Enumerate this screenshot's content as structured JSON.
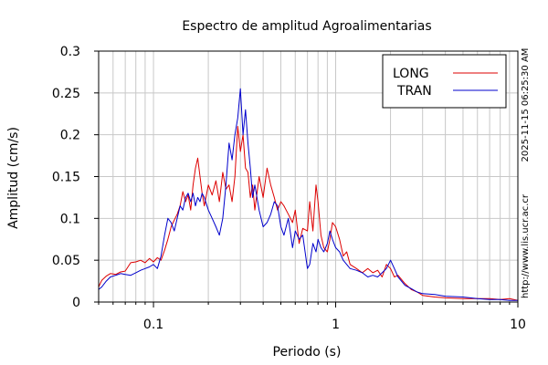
{
  "chart_data": {
    "type": "line",
    "title": "Espectro de amplitud Agroalimentarias",
    "xlabel": "Periodo (s)",
    "ylabel": "Amplitud (cm/s)",
    "x_scale": "log",
    "xlim": [
      0.05,
      10
    ],
    "ylim": [
      0,
      0.3
    ],
    "x_ticks": [
      {
        "value": 0.1,
        "label": "0.1"
      },
      {
        "value": 1,
        "label": "1"
      },
      {
        "value": 10,
        "label": "10"
      }
    ],
    "y_ticks": [
      {
        "value": 0,
        "label": "0"
      },
      {
        "value": 0.05,
        "label": "0.05"
      },
      {
        "value": 0.1,
        "label": "0.1"
      },
      {
        "value": 0.15,
        "label": "0.15"
      },
      {
        "value": 0.2,
        "label": "0.2"
      },
      {
        "value": 0.25,
        "label": "0.25"
      },
      {
        "value": 0.3,
        "label": "0.3"
      }
    ],
    "grid": true,
    "legend_position": "top-right",
    "side_texts": [
      "2025-11-15 06:25:30 AM",
      "http://www.lis.ucr.ac.cr"
    ],
    "series": [
      {
        "name": "LONG",
        "color": "#dd0000",
        "points": [
          [
            0.05,
            0.018
          ],
          [
            0.052,
            0.026
          ],
          [
            0.055,
            0.031
          ],
          [
            0.058,
            0.034
          ],
          [
            0.062,
            0.033
          ],
          [
            0.066,
            0.036
          ],
          [
            0.07,
            0.037
          ],
          [
            0.075,
            0.047
          ],
          [
            0.08,
            0.048
          ],
          [
            0.085,
            0.05
          ],
          [
            0.09,
            0.047
          ],
          [
            0.095,
            0.052
          ],
          [
            0.1,
            0.048
          ],
          [
            0.105,
            0.053
          ],
          [
            0.11,
            0.05
          ],
          [
            0.115,
            0.062
          ],
          [
            0.12,
            0.075
          ],
          [
            0.125,
            0.09
          ],
          [
            0.13,
            0.098
          ],
          [
            0.135,
            0.105
          ],
          [
            0.14,
            0.115
          ],
          [
            0.145,
            0.132
          ],
          [
            0.15,
            0.12
          ],
          [
            0.155,
            0.128
          ],
          [
            0.16,
            0.11
          ],
          [
            0.165,
            0.14
          ],
          [
            0.17,
            0.16
          ],
          [
            0.175,
            0.172
          ],
          [
            0.18,
            0.15
          ],
          [
            0.185,
            0.13
          ],
          [
            0.19,
            0.115
          ],
          [
            0.2,
            0.14
          ],
          [
            0.21,
            0.128
          ],
          [
            0.22,
            0.145
          ],
          [
            0.23,
            0.12
          ],
          [
            0.24,
            0.155
          ],
          [
            0.25,
            0.135
          ],
          [
            0.26,
            0.14
          ],
          [
            0.27,
            0.12
          ],
          [
            0.28,
            0.15
          ],
          [
            0.29,
            0.21
          ],
          [
            0.3,
            0.18
          ],
          [
            0.31,
            0.2
          ],
          [
            0.32,
            0.16
          ],
          [
            0.33,
            0.155
          ],
          [
            0.34,
            0.125
          ],
          [
            0.35,
            0.14
          ],
          [
            0.36,
            0.11
          ],
          [
            0.38,
            0.15
          ],
          [
            0.4,
            0.125
          ],
          [
            0.42,
            0.16
          ],
          [
            0.44,
            0.14
          ],
          [
            0.46,
            0.125
          ],
          [
            0.48,
            0.11
          ],
          [
            0.5,
            0.12
          ],
          [
            0.52,
            0.115
          ],
          [
            0.55,
            0.105
          ],
          [
            0.58,
            0.095
          ],
          [
            0.6,
            0.11
          ],
          [
            0.63,
            0.07
          ],
          [
            0.66,
            0.088
          ],
          [
            0.7,
            0.085
          ],
          [
            0.72,
            0.12
          ],
          [
            0.75,
            0.085
          ],
          [
            0.78,
            0.14
          ],
          [
            0.8,
            0.12
          ],
          [
            0.83,
            0.08
          ],
          [
            0.86,
            0.065
          ],
          [
            0.9,
            0.06
          ],
          [
            0.93,
            0.075
          ],
          [
            0.96,
            0.095
          ],
          [
            1.0,
            0.09
          ],
          [
            1.05,
            0.075
          ],
          [
            1.1,
            0.055
          ],
          [
            1.15,
            0.06
          ],
          [
            1.2,
            0.045
          ],
          [
            1.3,
            0.04
          ],
          [
            1.4,
            0.035
          ],
          [
            1.5,
            0.04
          ],
          [
            1.6,
            0.035
          ],
          [
            1.7,
            0.038
          ],
          [
            1.8,
            0.03
          ],
          [
            1.9,
            0.045
          ],
          [
            2.0,
            0.04
          ],
          [
            2.1,
            0.03
          ],
          [
            2.2,
            0.032
          ],
          [
            2.4,
            0.022
          ],
          [
            2.6,
            0.015
          ],
          [
            2.8,
            0.012
          ],
          [
            3.0,
            0.008
          ],
          [
            3.5,
            0.006
          ],
          [
            4.0,
            0.005
          ],
          [
            5.0,
            0.004
          ],
          [
            6.0,
            0.004
          ],
          [
            7.0,
            0.004
          ],
          [
            8.0,
            0.003
          ],
          [
            9.0,
            0.004
          ],
          [
            10.0,
            0.002
          ]
        ]
      },
      {
        "name": "TRAN",
        "color": "#0000cc",
        "points": [
          [
            0.05,
            0.015
          ],
          [
            0.052,
            0.018
          ],
          [
            0.055,
            0.025
          ],
          [
            0.058,
            0.03
          ],
          [
            0.062,
            0.032
          ],
          [
            0.066,
            0.034
          ],
          [
            0.07,
            0.033
          ],
          [
            0.075,
            0.032
          ],
          [
            0.08,
            0.035
          ],
          [
            0.085,
            0.038
          ],
          [
            0.09,
            0.04
          ],
          [
            0.095,
            0.042
          ],
          [
            0.1,
            0.045
          ],
          [
            0.105,
            0.04
          ],
          [
            0.11,
            0.055
          ],
          [
            0.115,
            0.08
          ],
          [
            0.12,
            0.1
          ],
          [
            0.125,
            0.095
          ],
          [
            0.13,
            0.085
          ],
          [
            0.135,
            0.1
          ],
          [
            0.14,
            0.115
          ],
          [
            0.145,
            0.11
          ],
          [
            0.15,
            0.125
          ],
          [
            0.155,
            0.13
          ],
          [
            0.16,
            0.12
          ],
          [
            0.165,
            0.13
          ],
          [
            0.17,
            0.115
          ],
          [
            0.175,
            0.125
          ],
          [
            0.18,
            0.12
          ],
          [
            0.185,
            0.13
          ],
          [
            0.19,
            0.125
          ],
          [
            0.2,
            0.11
          ],
          [
            0.21,
            0.1
          ],
          [
            0.22,
            0.09
          ],
          [
            0.23,
            0.08
          ],
          [
            0.24,
            0.1
          ],
          [
            0.25,
            0.14
          ],
          [
            0.26,
            0.19
          ],
          [
            0.27,
            0.17
          ],
          [
            0.28,
            0.2
          ],
          [
            0.29,
            0.22
          ],
          [
            0.3,
            0.255
          ],
          [
            0.31,
            0.2
          ],
          [
            0.32,
            0.23
          ],
          [
            0.33,
            0.19
          ],
          [
            0.34,
            0.16
          ],
          [
            0.35,
            0.125
          ],
          [
            0.36,
            0.14
          ],
          [
            0.38,
            0.11
          ],
          [
            0.4,
            0.09
          ],
          [
            0.42,
            0.095
          ],
          [
            0.44,
            0.105
          ],
          [
            0.46,
            0.12
          ],
          [
            0.48,
            0.115
          ],
          [
            0.5,
            0.09
          ],
          [
            0.52,
            0.08
          ],
          [
            0.55,
            0.1
          ],
          [
            0.58,
            0.065
          ],
          [
            0.6,
            0.085
          ],
          [
            0.63,
            0.075
          ],
          [
            0.66,
            0.08
          ],
          [
            0.7,
            0.04
          ],
          [
            0.72,
            0.045
          ],
          [
            0.75,
            0.07
          ],
          [
            0.78,
            0.06
          ],
          [
            0.8,
            0.075
          ],
          [
            0.83,
            0.065
          ],
          [
            0.86,
            0.06
          ],
          [
            0.9,
            0.07
          ],
          [
            0.93,
            0.085
          ],
          [
            0.96,
            0.075
          ],
          [
            1.0,
            0.065
          ],
          [
            1.05,
            0.06
          ],
          [
            1.1,
            0.05
          ],
          [
            1.15,
            0.045
          ],
          [
            1.2,
            0.04
          ],
          [
            1.3,
            0.038
          ],
          [
            1.4,
            0.035
          ],
          [
            1.5,
            0.03
          ],
          [
            1.6,
            0.032
          ],
          [
            1.7,
            0.03
          ],
          [
            1.8,
            0.035
          ],
          [
            1.9,
            0.04
          ],
          [
            2.0,
            0.05
          ],
          [
            2.1,
            0.04
          ],
          [
            2.2,
            0.03
          ],
          [
            2.4,
            0.02
          ],
          [
            2.6,
            0.016
          ],
          [
            2.8,
            0.012
          ],
          [
            3.0,
            0.01
          ],
          [
            3.5,
            0.009
          ],
          [
            4.0,
            0.007
          ],
          [
            5.0,
            0.006
          ],
          [
            6.0,
            0.004
          ],
          [
            7.0,
            0.003
          ],
          [
            8.0,
            0.003
          ],
          [
            9.0,
            0.002
          ],
          [
            10.0,
            0.002
          ]
        ]
      }
    ]
  }
}
